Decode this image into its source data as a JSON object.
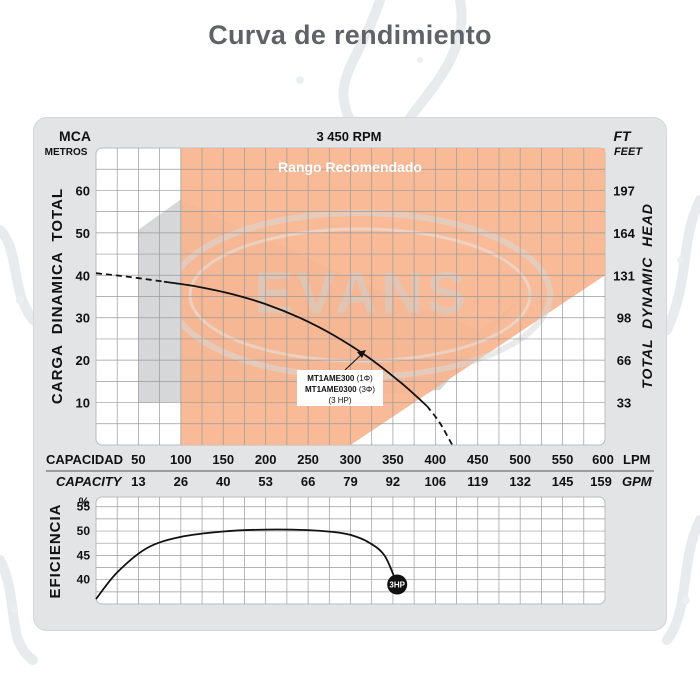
{
  "title": "Curva de rendimiento",
  "colors": {
    "recommended_range": "#f7b48e",
    "grid": "#9a9a9a",
    "curve": "#111111",
    "panel": "#e3e4e6",
    "plot": "#ffffff",
    "watermark": "#c8c8c8"
  },
  "watermark_text": "EVANS",
  "watermark_symbol": "®",
  "chart_data": [
    {
      "type": "line",
      "title": "",
      "rpm_label": "3 450 RPM",
      "recommended_label": "Rango Recomendado",
      "xlabel": "CAPACIDAD",
      "xunit": "LPM",
      "x2label": "CAPACITY",
      "x2unit": "GPM",
      "ylabel": "CARGA  DINAMICA  TOTAL",
      "y_unit_top": "MCA",
      "y_unit_sub": "METROS",
      "y2label": "TOTAL  DYNAMIC  HEAD",
      "y2_unit_top": "FT",
      "y2_unit_sub": "FEET",
      "xlim": [
        0,
        600
      ],
      "ylim": [
        0,
        70
      ],
      "grid": true,
      "x_ticks": [
        50,
        100,
        150,
        200,
        250,
        300,
        350,
        400,
        450,
        500,
        550,
        600
      ],
      "x2_ticks": [
        "13",
        "26",
        "40",
        "53",
        "66",
        "79",
        "92",
        "106",
        "119",
        "132",
        "145",
        "159"
      ],
      "y_ticks": [
        10,
        20,
        30,
        40,
        50,
        60
      ],
      "y2_ticks": [
        "33",
        "66",
        "98",
        "131",
        "164",
        "197"
      ],
      "recommended_range": {
        "x_min": 100,
        "x_max": 600,
        "y_max": 70,
        "lower_edge": [
          [
            300,
            0
          ],
          [
            600,
            40
          ]
        ]
      },
      "series": [
        {
          "style": "dashed",
          "x": [
            0,
            40,
            80
          ],
          "y": [
            40.5,
            39.6,
            38.5
          ]
        },
        {
          "style": "solid",
          "x": [
            80,
            120,
            160,
            200,
            240,
            280,
            320,
            360,
            390
          ],
          "y": [
            38.5,
            37.3,
            35.6,
            33.2,
            30.0,
            25.9,
            20.8,
            14.6,
            9.2
          ]
        },
        {
          "style": "dashed",
          "x": [
            390,
            405,
            420
          ],
          "y": [
            9.2,
            5.3,
            0
          ]
        }
      ],
      "annotation": {
        "line1": "MT1AME300",
        "line1_suffix": " (1Φ)",
        "line2": "MT1AME0300",
        "line2_suffix": " (3Φ)",
        "line3": "(3 HP)",
        "points_to": [
          340,
          21
        ]
      }
    },
    {
      "type": "line",
      "ylabel": "EFICIENCIA",
      "y_unit": "%",
      "xlim": [
        0,
        600
      ],
      "ylim": [
        35,
        57
      ],
      "y_ticks": [
        40,
        45,
        50,
        55
      ],
      "grid": true,
      "series": [
        {
          "style": "solid",
          "x": [
            0,
            25,
            60,
            100,
            150,
            200,
            250,
            280,
            300,
            320,
            340,
            355
          ],
          "y": [
            36.0,
            41.5,
            46.5,
            48.8,
            49.9,
            50.3,
            50.2,
            49.8,
            49.2,
            47.8,
            45.0,
            39.0
          ]
        }
      ],
      "badge": "3HP"
    }
  ]
}
